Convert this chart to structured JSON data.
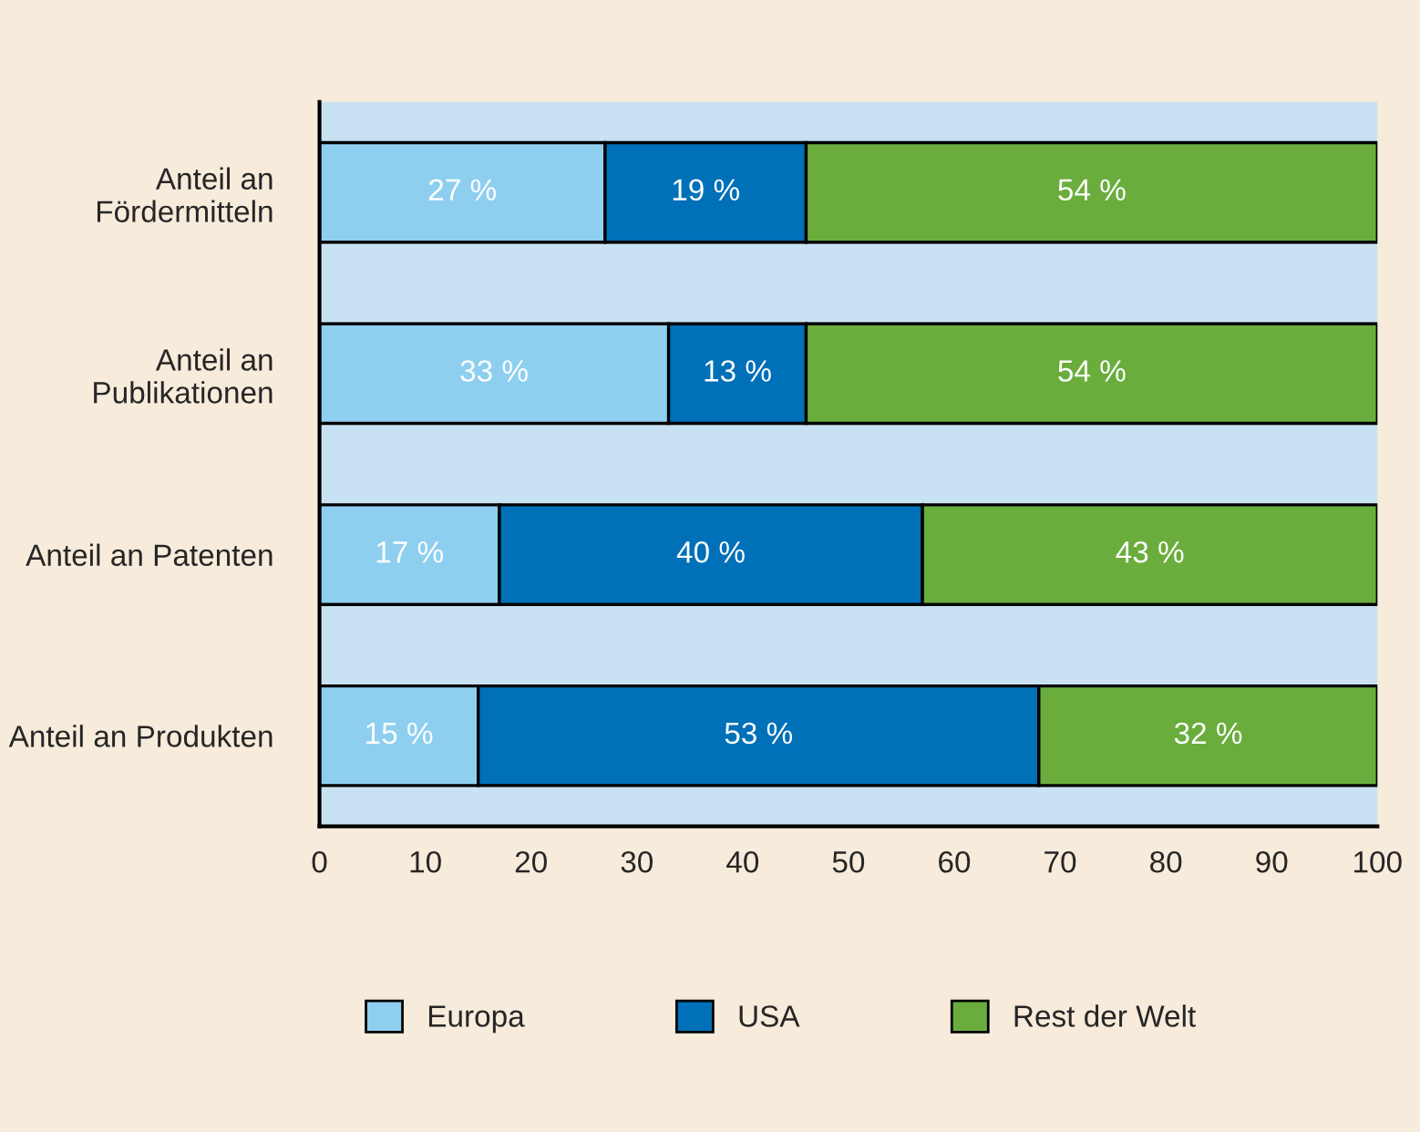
{
  "chart_data": {
    "type": "bar",
    "orientation": "horizontal",
    "stacked": true,
    "categories": [
      "Anteil an\nFördermitteln",
      "Anteil an\nPublikationen",
      "Anteil an Patenten",
      "Anteil an Produkten"
    ],
    "series": [
      {
        "name": "Europa",
        "color": "#8ecfef",
        "values": [
          27,
          33,
          17,
          15
        ],
        "value_labels": [
          "27 %",
          "33 %",
          "17 %",
          "15 %"
        ]
      },
      {
        "name": "USA",
        "color": "#0070b8",
        "values": [
          19,
          13,
          40,
          53
        ],
        "value_labels": [
          "19 %",
          "13 %",
          "40 %",
          "53 %"
        ]
      },
      {
        "name": "Rest der Welt",
        "color": "#6aad3d",
        "values": [
          54,
          54,
          43,
          32
        ],
        "value_labels": [
          "54 %",
          "54 %",
          "43 %",
          "32 %"
        ]
      }
    ],
    "xlim": [
      0,
      100
    ],
    "xticks": [
      0,
      10,
      20,
      30,
      40,
      50,
      60,
      70,
      80,
      90,
      100
    ],
    "grid": false,
    "legend": "bottom"
  }
}
